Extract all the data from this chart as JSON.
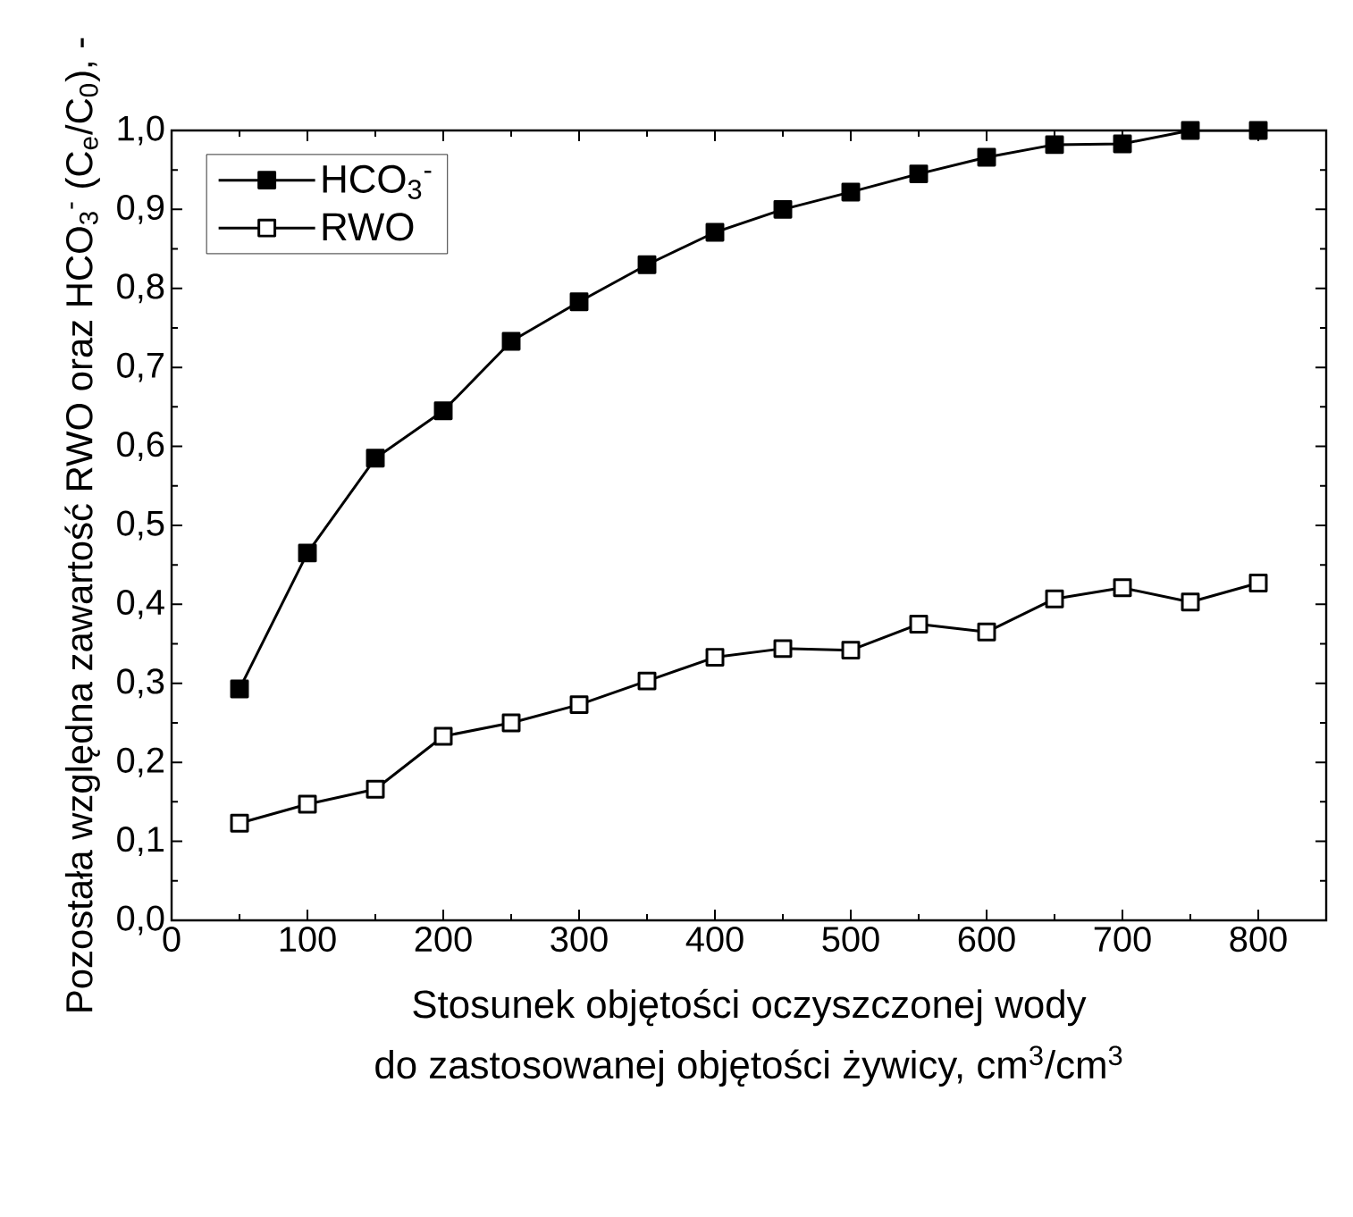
{
  "chart_data": {
    "type": "line",
    "xlabel": [
      "Stosunek objętości oczyszczonej wody",
      "do zastosowanej objętości żywicy, cm$^{3}$/cm$^{3}$"
    ],
    "ylabel": "Pozostała względna zawartość RWO oraz HCO$_{3}$$^{-}$ (C$_{e}$/C$_{0}$), -",
    "x": [
      50,
      100,
      150,
      200,
      250,
      300,
      350,
      400,
      450,
      500,
      550,
      600,
      650,
      700,
      750,
      800
    ],
    "series": [
      {
        "name": "HCO$_{3}$$^{-}$",
        "color": "#000000",
        "values": [
          0.293,
          0.465,
          0.585,
          0.645,
          0.733,
          0.783,
          0.83,
          0.871,
          0.9,
          0.922,
          0.945,
          0.966,
          0.982,
          0.983,
          1.0,
          1.0
        ]
      },
      {
        "name": "RWO",
        "color": "#000000",
        "values": [
          0.123,
          0.147,
          0.166,
          0.233,
          0.25,
          0.273,
          0.303,
          0.333,
          0.344,
          0.342,
          0.375,
          0.365,
          0.407,
          0.421,
          0.403,
          0.427
        ]
      }
    ],
    "xlim": [
      0,
      850
    ],
    "ylim": [
      0,
      1.0
    ],
    "xticks": [
      0,
      100,
      200,
      300,
      400,
      500,
      600,
      700,
      800
    ],
    "yticks": [
      {
        "value": 0,
        "label": "0,0"
      },
      {
        "value": 0.1,
        "label": "0,1"
      },
      {
        "value": 0.2,
        "label": "0,2"
      },
      {
        "value": 0.3,
        "label": "0,3"
      },
      {
        "value": 0.4,
        "label": "0,4"
      },
      {
        "value": 0.5,
        "label": "0,5"
      },
      {
        "value": 0.6,
        "label": "0,6"
      },
      {
        "value": 0.7,
        "label": "0,7"
      },
      {
        "value": 0.8,
        "label": "0,8"
      },
      {
        "value": 0.9,
        "label": "0,9"
      },
      {
        "value": 1.0,
        "label": "1,0"
      }
    ],
    "legend": "top left",
    "marker": "square",
    "line_style": "solid",
    "grid": false
  }
}
